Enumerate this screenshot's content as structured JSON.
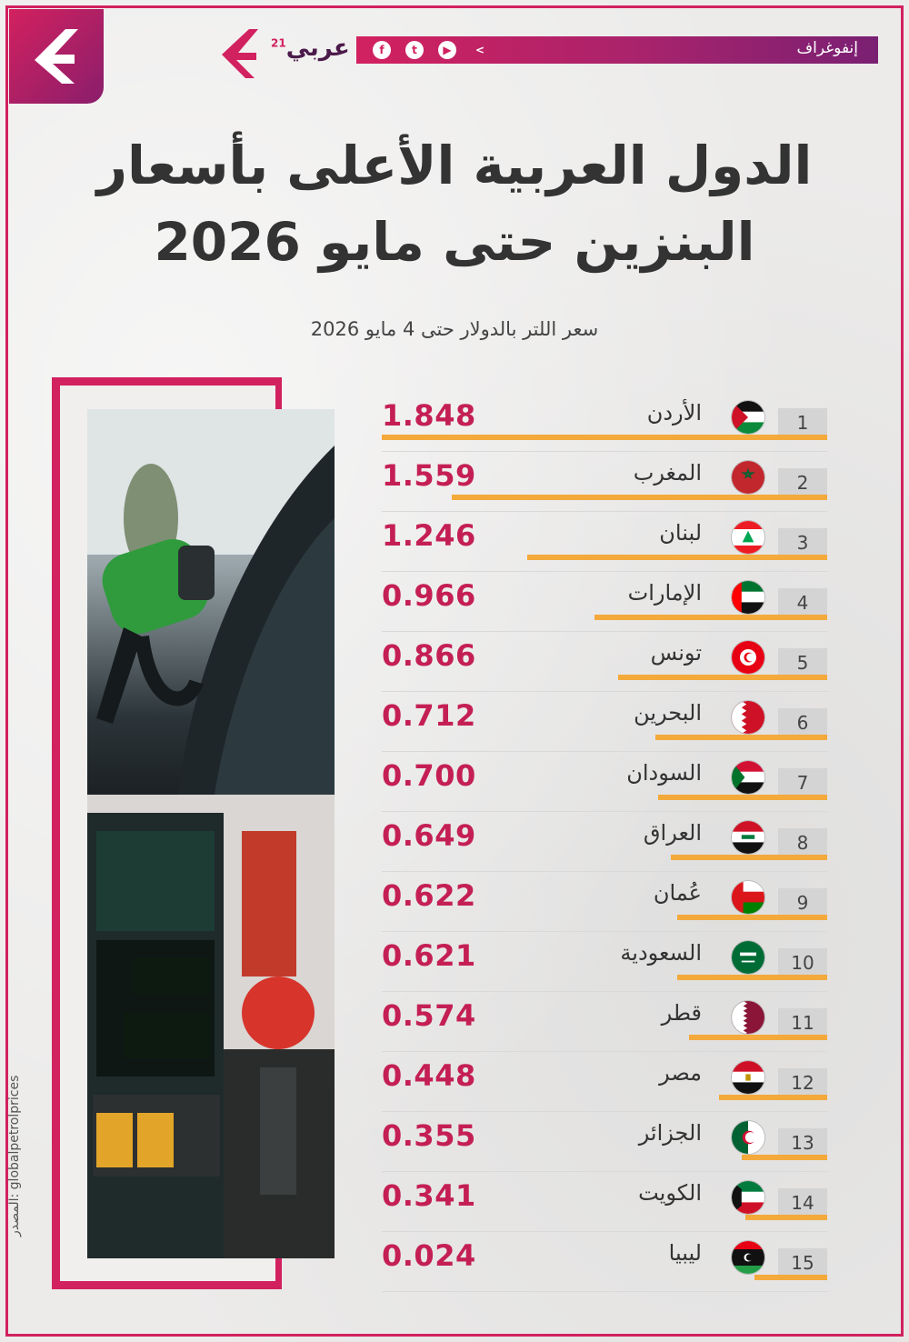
{
  "header": {
    "section_label": "إنفوغراف",
    "brand_name": "عربي",
    "brand_superscript": "21"
  },
  "title_line1": "الدول العربية الأعلى بأسعار",
  "title_line2": "البنزين حتى مايو 2026",
  "subtitle": "سعر اللتر بالدولار حتى 4 مايو 2026",
  "source": "المصدر: globalpetrolprices",
  "colors": {
    "accent": "#d2215f",
    "bar": "#f4a93b",
    "value": "#c41f55"
  },
  "chart_data": {
    "type": "bar",
    "orientation": "horizontal",
    "title": "الدول العربية الأعلى بأسعار البنزين حتى مايو 2026",
    "subtitle": "سعر اللتر بالدولار حتى 4 مايو 2026",
    "categories": [
      "الأردن",
      "المغرب",
      "لبنان",
      "الإمارات",
      "تونس",
      "البحرين",
      "السودان",
      "العراق",
      "عُمان",
      "السعودية",
      "قطر",
      "مصر",
      "الجزائر",
      "الكويت",
      "ليبيا"
    ],
    "ranks": [
      "1",
      "2",
      "3",
      "4",
      "5",
      "6",
      "7",
      "8",
      "9",
      "10",
      "11",
      "12",
      "13",
      "14",
      "15"
    ],
    "labels": [
      "1.848",
      "1.559",
      "1.246",
      "0.966",
      "0.866",
      "0.712",
      "0.700",
      "0.649",
      "0.622",
      "0.621",
      "0.574",
      "0.448",
      "0.355",
      "0.341",
      "0.024"
    ],
    "values": [
      1.848,
      1.559,
      1.246,
      0.966,
      0.866,
      0.712,
      0.7,
      0.649,
      0.622,
      0.621,
      0.574,
      0.448,
      0.355,
      0.341,
      0.024
    ],
    "flags": [
      "jordan-flag",
      "morocco-flag",
      "lebanon-flag",
      "uae-flag",
      "tunisia-flag",
      "bahrain-flag",
      "sudan-flag",
      "iraq-flag",
      "oman-flag",
      "saudi-flag",
      "qatar-flag",
      "egypt-flag",
      "algeria-flag",
      "kuwait-flag",
      "libya-flag"
    ]
  }
}
